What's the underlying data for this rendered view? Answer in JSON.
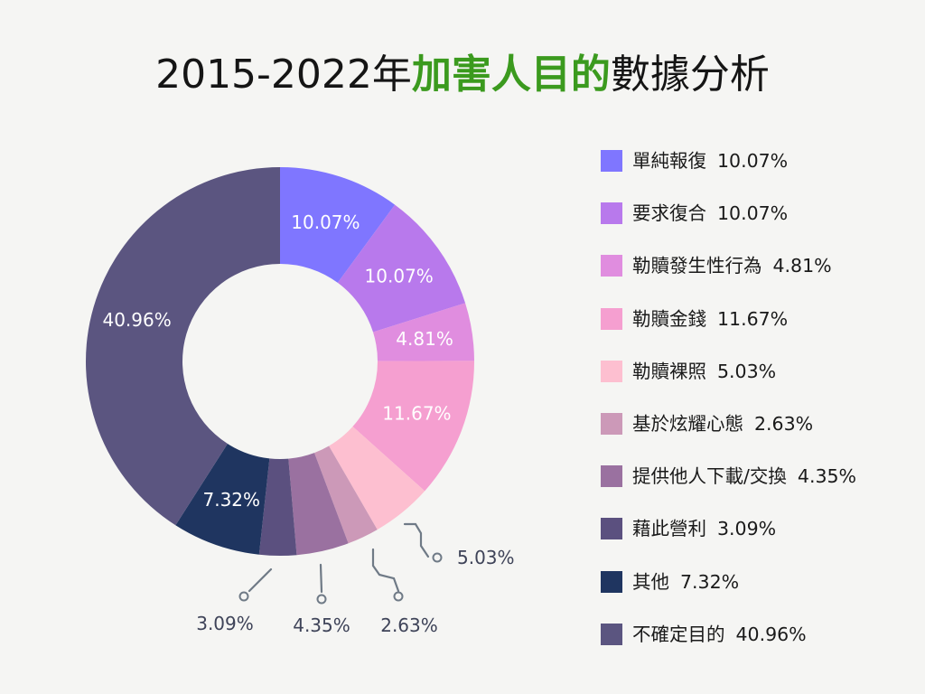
{
  "title": {
    "prefix": "2015-2022年",
    "highlight": "加害人目的",
    "suffix": "數據分析"
  },
  "colors": {
    "title_highlight": "#3b9a1e",
    "inside_label": "#ffffff",
    "outside_label": "#3e4358",
    "leader_line": "#6f7a86"
  },
  "chart_data": {
    "type": "pie",
    "variant": "donut",
    "title": "2015-2022年加害人目的數據分析",
    "categories": [
      "單純報復",
      "要求復合",
      "勒贖發生性行為",
      "勒贖金錢",
      "勒贖裸照",
      "基於炫耀心態",
      "提供他人下載/交換",
      "藉此營利",
      "其他",
      "不確定目的"
    ],
    "values": [
      10.07,
      10.07,
      4.81,
      11.67,
      5.03,
      2.63,
      4.35,
      3.09,
      7.32,
      40.96
    ],
    "value_labels": [
      "10.07%",
      "10.07%",
      "4.81%",
      "11.67%",
      "5.03%",
      "2.63%",
      "4.35%",
      "3.09%",
      "7.32%",
      "40.96%"
    ],
    "colors": [
      "#7f76ff",
      "#b879ec",
      "#e08ddf",
      "#f59fd0",
      "#fdbfd0",
      "#cc99b8",
      "#9a71a0",
      "#5b507f",
      "#1f3560",
      "#5b5580"
    ],
    "unit": "%",
    "legend_position": "right"
  }
}
